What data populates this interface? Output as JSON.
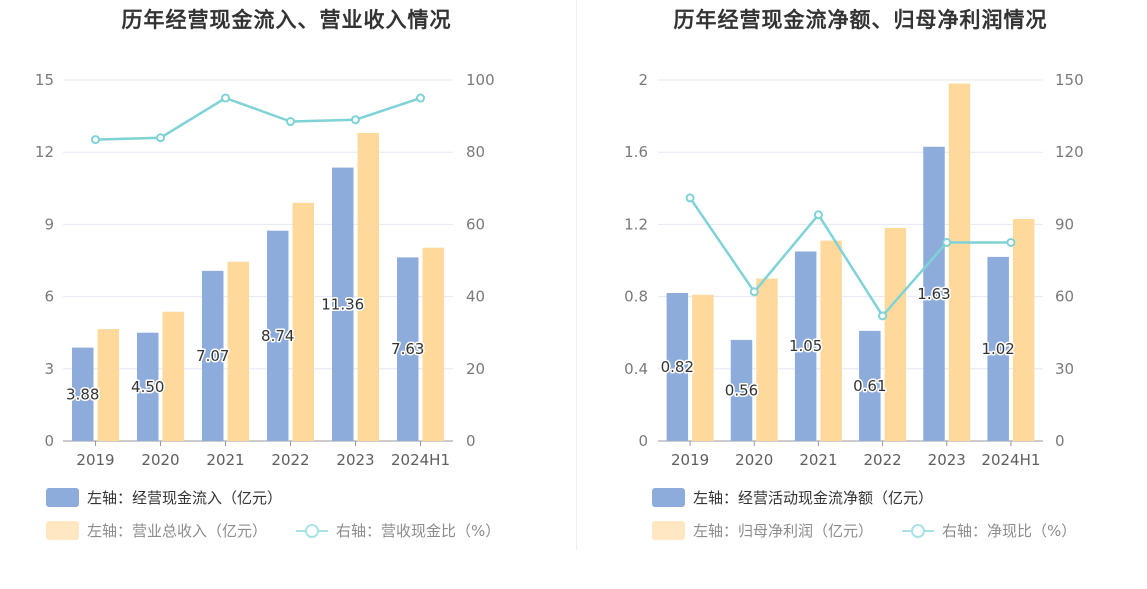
{
  "colors": {
    "bar1": "#8eacdb",
    "bar2": "#ffd99b",
    "line": "#7fd3d7",
    "grid": "#e3e8f3",
    "axis": "#999999"
  },
  "chart_data": [
    {
      "type": "bar",
      "title": "历年经营现金流入、营业收入情况",
      "categories": [
        "2019",
        "2020",
        "2021",
        "2022",
        "2023",
        "2024H1"
      ],
      "left_axis": {
        "ylim": [
          0,
          15
        ],
        "ticks": [
          "0",
          "3",
          "6",
          "9",
          "12",
          "15"
        ]
      },
      "right_axis": {
        "ylim": [
          0,
          100
        ],
        "ticks": [
          "0",
          "20",
          "40",
          "60",
          "80",
          "100"
        ]
      },
      "series": [
        {
          "name": "左轴：经营现金流入（亿元）",
          "type": "bar",
          "axis": "left",
          "values": [
            3.88,
            4.5,
            7.07,
            8.74,
            11.36,
            7.63
          ],
          "labels": [
            "3.88",
            "4.50",
            "7.07",
            "8.74",
            "11.36",
            "7.63"
          ]
        },
        {
          "name": "左轴：营业总收入（亿元）",
          "type": "bar",
          "axis": "left",
          "values": [
            4.65,
            5.37,
            7.45,
            9.9,
            12.8,
            8.03
          ]
        },
        {
          "name": "右轴：营收现金比（%）",
          "type": "line",
          "axis": "right",
          "values": [
            83.5,
            84.0,
            95.0,
            88.5,
            89.0,
            95.0
          ]
        }
      ],
      "legend": "bottom-left",
      "grid": true
    },
    {
      "type": "bar",
      "title": "历年经营现金流净额、归母净利润情况",
      "categories": [
        "2019",
        "2020",
        "2021",
        "2022",
        "2023",
        "2024H1"
      ],
      "left_axis": {
        "ylim": [
          0,
          2
        ],
        "ticks": [
          "0",
          "0.4",
          "0.8",
          "1.2",
          "1.6",
          "2"
        ]
      },
      "right_axis": {
        "ylim": [
          0,
          150
        ],
        "ticks": [
          "0",
          "30",
          "60",
          "90",
          "120",
          "150"
        ]
      },
      "series": [
        {
          "name": "左轴：经营活动现金流净额（亿元）",
          "type": "bar",
          "axis": "left",
          "values": [
            0.82,
            0.56,
            1.05,
            0.61,
            1.63,
            1.02
          ],
          "labels": [
            "0.82",
            "0.56",
            "1.05",
            "0.61",
            "1.63",
            "1.02"
          ]
        },
        {
          "name": "左轴：归母净利润（亿元）",
          "type": "bar",
          "axis": "left",
          "values": [
            0.81,
            0.9,
            1.11,
            1.18,
            1.98,
            1.23
          ]
        },
        {
          "name": "右轴：净现比（%）",
          "type": "line",
          "axis": "right",
          "values": [
            101,
            62,
            94,
            52,
            82.5,
            82.5
          ]
        }
      ],
      "legend": "bottom-left",
      "grid": true
    }
  ]
}
